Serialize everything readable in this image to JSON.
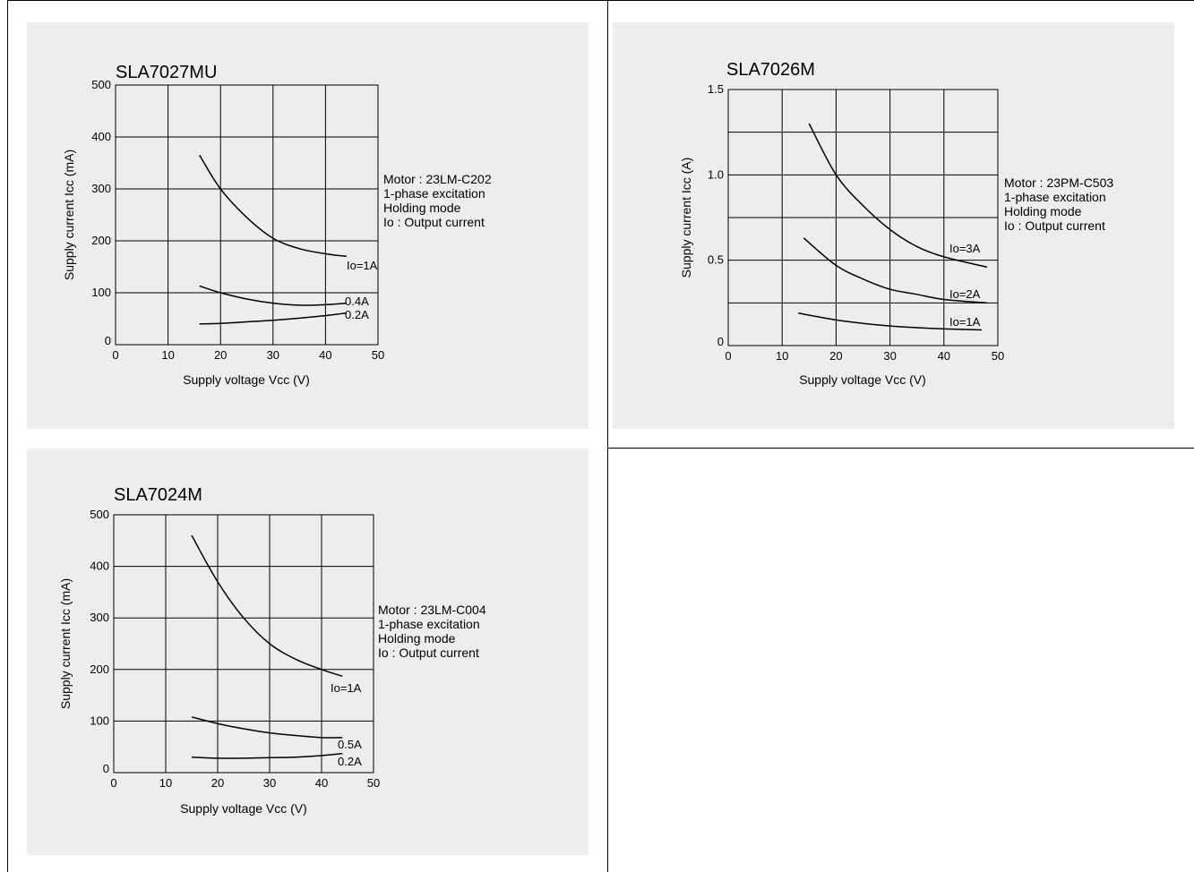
{
  "chart_data": [
    {
      "type": "line",
      "title": "SLA7027MU",
      "xlabel": "Supply voltage Vcc (V)",
      "ylabel": "Supply current Icc (mA)",
      "xlim": [
        0,
        50
      ],
      "ylim": [
        0,
        500
      ],
      "x_ticks": [
        "0",
        "10",
        "20",
        "30",
        "40",
        "50"
      ],
      "y_ticks": [
        "0",
        "100",
        "200",
        "300",
        "400",
        "500"
      ],
      "grid": true,
      "notes": [
        "Motor : 23LM-C202",
        "1-phase excitation",
        "Holding mode",
        "Io : Output current"
      ],
      "series": [
        {
          "name": "Io=1A",
          "points": [
            [
              16,
              365
            ],
            [
              20,
              300
            ],
            [
              25,
              245
            ],
            [
              30,
              205
            ],
            [
              35,
              185
            ],
            [
              40,
              175
            ],
            [
              44,
              170
            ]
          ]
        },
        {
          "name": "0.4A",
          "points": [
            [
              16,
              113
            ],
            [
              20,
              100
            ],
            [
              25,
              88
            ],
            [
              30,
              80
            ],
            [
              35,
              76
            ],
            [
              40,
              77
            ],
            [
              44,
              80
            ]
          ]
        },
        {
          "name": "0.2A",
          "points": [
            [
              16,
              40
            ],
            [
              20,
              41
            ],
            [
              25,
              44
            ],
            [
              30,
              47
            ],
            [
              35,
              51
            ],
            [
              40,
              56
            ],
            [
              44,
              61
            ]
          ]
        }
      ]
    },
    {
      "type": "line",
      "title": "SLA7026M",
      "xlabel": "Supply voltage Vcc (V)",
      "ylabel": "Supply current Icc (A)",
      "xlim": [
        0,
        50
      ],
      "ylim": [
        0,
        1.5
      ],
      "x_ticks": [
        "0",
        "10",
        "20",
        "30",
        "40",
        "50"
      ],
      "y_ticks": [
        "0",
        "0.5",
        "1.0",
        "1.5"
      ],
      "grid": true,
      "notes": [
        "Motor : 23PM-C503",
        "1-phase excitation",
        "Holding mode",
        "Io : Output current"
      ],
      "series": [
        {
          "name": "Io=3A",
          "points": [
            [
              15,
              1.3
            ],
            [
              20,
              1.0
            ],
            [
              25,
              0.82
            ],
            [
              30,
              0.68
            ],
            [
              35,
              0.58
            ],
            [
              40,
              0.52
            ],
            [
              48,
              0.46
            ]
          ]
        },
        {
          "name": "Io=2A",
          "points": [
            [
              14,
              0.63
            ],
            [
              20,
              0.47
            ],
            [
              25,
              0.39
            ],
            [
              30,
              0.33
            ],
            [
              35,
              0.3
            ],
            [
              40,
              0.27
            ],
            [
              48,
              0.25
            ]
          ]
        },
        {
          "name": "Io=1A",
          "points": [
            [
              13,
              0.19
            ],
            [
              20,
              0.15
            ],
            [
              25,
              0.13
            ],
            [
              30,
              0.115
            ],
            [
              35,
              0.105
            ],
            [
              40,
              0.098
            ],
            [
              47,
              0.092
            ]
          ]
        }
      ]
    },
    {
      "type": "line",
      "title": "SLA7024M",
      "xlabel": "Supply voltage Vcc (V)",
      "ylabel": "Supply current Icc (mA)",
      "xlim": [
        0,
        50
      ],
      "ylim": [
        0,
        500
      ],
      "x_ticks": [
        "0",
        "10",
        "20",
        "30",
        "40",
        "50"
      ],
      "y_ticks": [
        "0",
        "100",
        "200",
        "300",
        "400",
        "500"
      ],
      "grid": true,
      "notes": [
        "Motor : 23LM-C004",
        "1-phase excitation",
        "Holding mode",
        "Io : Output current"
      ],
      "series": [
        {
          "name": "Io=1A",
          "points": [
            [
              15,
              460
            ],
            [
              20,
              370
            ],
            [
              25,
              300
            ],
            [
              30,
              250
            ],
            [
              35,
              220
            ],
            [
              40,
              200
            ],
            [
              44,
              187
            ]
          ]
        },
        {
          "name": "0.5A",
          "points": [
            [
              15,
              108
            ],
            [
              20,
              95
            ],
            [
              25,
              85
            ],
            [
              30,
              77
            ],
            [
              35,
              72
            ],
            [
              40,
              68
            ],
            [
              44,
              68
            ]
          ]
        },
        {
          "name": "0.2A",
          "points": [
            [
              15,
              30
            ],
            [
              20,
              28
            ],
            [
              25,
              28
            ],
            [
              30,
              29
            ],
            [
              35,
              30
            ],
            [
              40,
              33
            ],
            [
              44,
              37
            ]
          ]
        }
      ]
    }
  ]
}
